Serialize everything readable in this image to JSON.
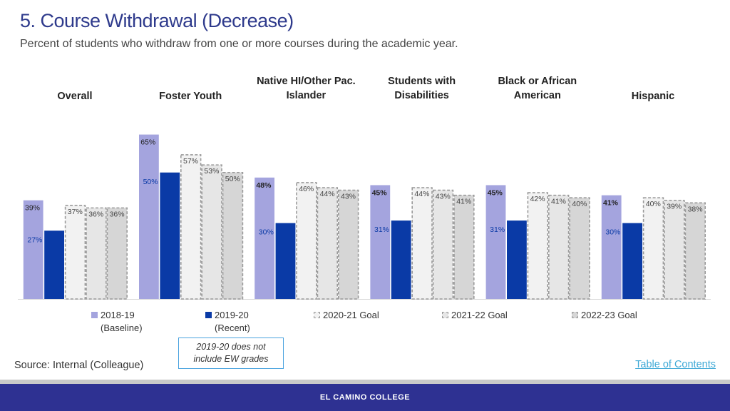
{
  "header": {
    "title": "5. Course Withdrawal (Decrease)",
    "subtitle": "Percent of students who withdraw from one or more courses during the academic year."
  },
  "chart_data": {
    "type": "bar",
    "categories": [
      [
        "Overall"
      ],
      [
        "Foster Youth"
      ],
      [
        "Native HI/Other Pac.",
        "Islander"
      ],
      [
        "Students with",
        "Disabilities"
      ],
      [
        "Black or African",
        "American"
      ],
      [
        "Hispanic"
      ]
    ],
    "series": [
      {
        "name": "2018-19 (Baseline)",
        "values": [
          39,
          65,
          48,
          45,
          45,
          41
        ],
        "color": "#a4a4de",
        "style": "solid"
      },
      {
        "name": "2019-20 (Recent)",
        "values": [
          27,
          50,
          30,
          31,
          31,
          30
        ],
        "color": "#0a3aa6",
        "style": "solid"
      },
      {
        "name": "2020-21 Goal",
        "values": [
          37,
          57,
          46,
          44,
          42,
          40
        ],
        "color": "#f2f2f2",
        "style": "dashed"
      },
      {
        "name": "2021-22 Goal",
        "values": [
          36,
          53,
          44,
          43,
          41,
          39
        ],
        "color": "#e6e6e6",
        "style": "dashed"
      },
      {
        "name": "2022-23 Goal",
        "values": [
          36,
          50,
          43,
          41,
          40,
          38
        ],
        "color": "#d6d6d6",
        "style": "dashed"
      }
    ],
    "unit": "%",
    "ylim": [
      0,
      75
    ],
    "grid": false,
    "legend_position": "bottom"
  },
  "legend": [
    {
      "line1": "2018-19",
      "line2": "(Baseline)"
    },
    {
      "line1": "2019-20",
      "line2": "(Recent)"
    },
    {
      "line1": "2020-21 Goal",
      "line2": ""
    },
    {
      "line1": "2021-22 Goal",
      "line2": ""
    },
    {
      "line1": "2022-23 Goal",
      "line2": ""
    }
  ],
  "note": "2019-20 does not include EW grades",
  "source": "Source: Internal (Colleague)",
  "toc_link": "Table of Contents",
  "footer": "EL CAMINO COLLEGE"
}
